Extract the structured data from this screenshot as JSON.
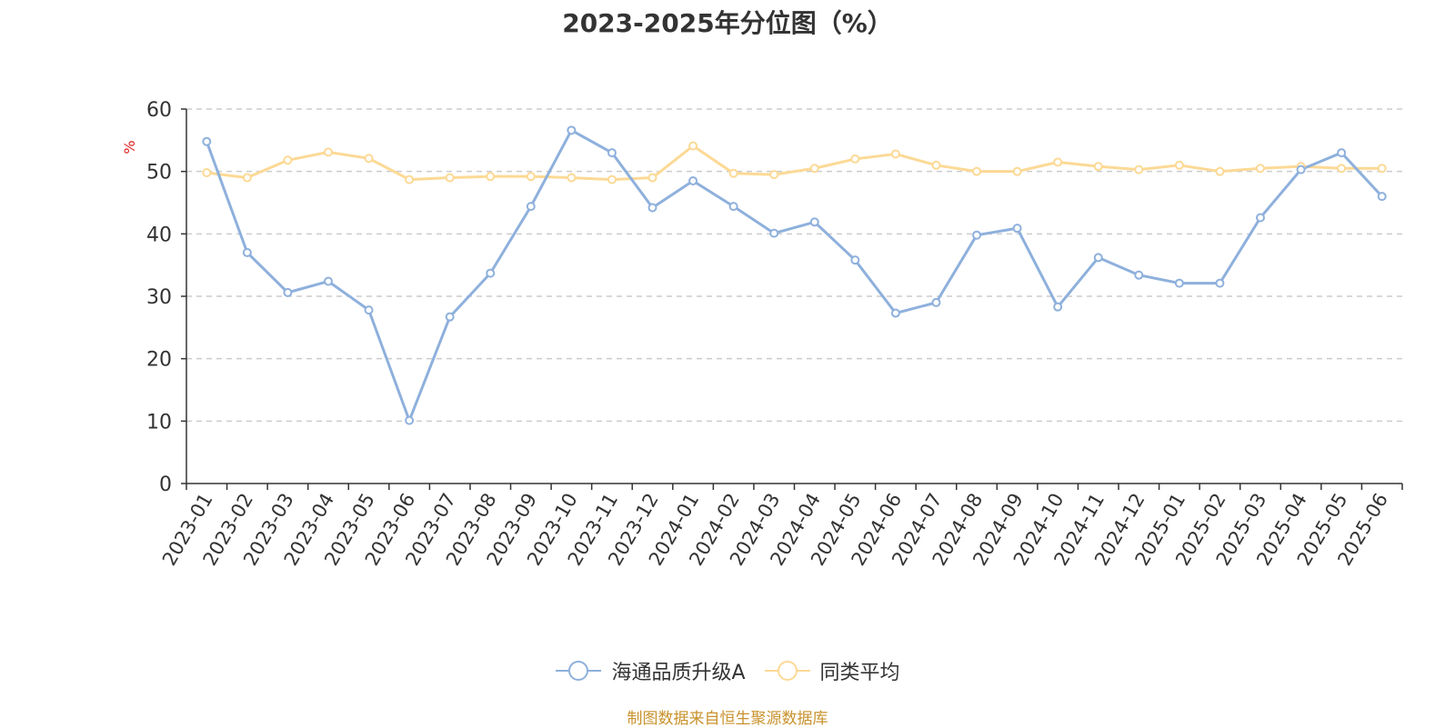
{
  "title": "2023-2025年分位图（%）",
  "footer": "制图数据来自恒生聚源数据库",
  "colors": {
    "series_a": "#8eb0dc",
    "series_b": "#fcd995",
    "axis": "#333333",
    "grid": "#cccccc",
    "unit": "#e02020",
    "footer": "#c8922c"
  },
  "chart_data": {
    "type": "line",
    "title": "2023-2025年分位图（%）",
    "ylabel": "%",
    "xlabel": "",
    "ylim": [
      0,
      60
    ],
    "yticks": [
      0,
      10,
      20,
      30,
      40,
      50,
      60
    ],
    "grid": true,
    "legend_position": "bottom-center",
    "categories": [
      "2023-01",
      "2023-02",
      "2023-03",
      "2023-04",
      "2023-05",
      "2023-06",
      "2023-07",
      "2023-08",
      "2023-09",
      "2023-10",
      "2023-11",
      "2023-12",
      "2024-01",
      "2024-02",
      "2024-03",
      "2024-04",
      "2024-05",
      "2024-06",
      "2024-07",
      "2024-08",
      "2024-09",
      "2024-10",
      "2024-11",
      "2024-12",
      "2025-01",
      "2025-02",
      "2025-03",
      "2025-04",
      "2025-05",
      "2025-06"
    ],
    "series": [
      {
        "name": "海通品质升级A",
        "color": "#8eb0dc",
        "values": [
          54.8,
          37.0,
          30.6,
          32.4,
          27.8,
          10.1,
          26.7,
          33.7,
          44.4,
          56.6,
          53.0,
          44.2,
          48.5,
          44.4,
          40.1,
          41.9,
          35.8,
          27.3,
          29.0,
          39.8,
          40.9,
          28.3,
          36.2,
          33.4,
          32.1,
          32.1,
          42.6,
          50.3,
          53.0,
          46.0
        ]
      },
      {
        "name": "同类平均",
        "color": "#fcd995",
        "values": [
          49.8,
          49.0,
          51.8,
          53.1,
          52.1,
          48.7,
          49.0,
          49.2,
          49.2,
          49.0,
          48.7,
          49.0,
          54.1,
          49.7,
          49.5,
          50.5,
          52.0,
          52.8,
          51.0,
          50.0,
          50.0,
          51.5,
          50.8,
          50.3,
          51.0,
          50.0,
          50.5,
          50.8,
          50.5,
          50.5
        ]
      }
    ]
  }
}
